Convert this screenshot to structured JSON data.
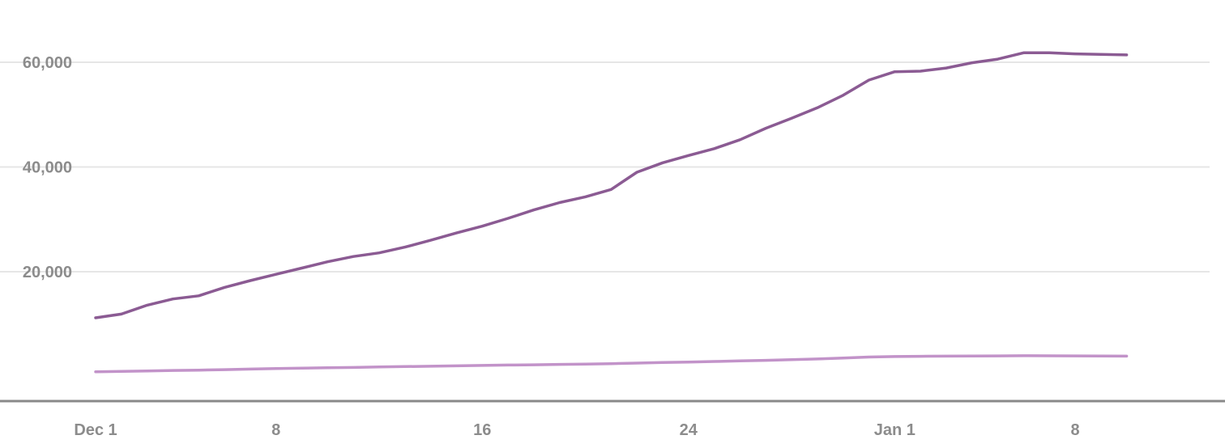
{
  "chart_data": {
    "type": "line",
    "title": "",
    "xlabel": "",
    "ylabel": "",
    "x_ticks": [
      {
        "date": "2020-12-01",
        "label": "Dec 1"
      },
      {
        "date": "2020-12-08",
        "label": "8"
      },
      {
        "date": "2020-12-16",
        "label": "16"
      },
      {
        "date": "2020-12-24",
        "label": "24"
      },
      {
        "date": "2021-01-01",
        "label": "Jan 1"
      },
      {
        "date": "2021-01-08",
        "label": "8"
      }
    ],
    "y_ticks": [
      {
        "value": 20000,
        "label": "20,000"
      },
      {
        "value": 40000,
        "label": "40,000"
      },
      {
        "value": 60000,
        "label": "60,000"
      }
    ],
    "xlim": [
      "2020-11-30",
      "2021-01-13"
    ],
    "ylim": [
      0,
      67000
    ],
    "grid": true,
    "x": [
      "2020-12-01",
      "2020-12-02",
      "2020-12-03",
      "2020-12-04",
      "2020-12-05",
      "2020-12-06",
      "2020-12-07",
      "2020-12-08",
      "2020-12-09",
      "2020-12-10",
      "2020-12-11",
      "2020-12-12",
      "2020-12-13",
      "2020-12-14",
      "2020-12-15",
      "2020-12-16",
      "2020-12-17",
      "2020-12-18",
      "2020-12-19",
      "2020-12-20",
      "2020-12-21",
      "2020-12-22",
      "2020-12-23",
      "2020-12-24",
      "2020-12-25",
      "2020-12-26",
      "2020-12-27",
      "2020-12-28",
      "2020-12-29",
      "2020-12-30",
      "2020-12-31",
      "2021-01-01",
      "2021-01-02",
      "2021-01-03",
      "2021-01-04",
      "2021-01-05",
      "2021-01-06",
      "2021-01-07",
      "2021-01-08",
      "2021-01-09",
      "2021-01-10"
    ],
    "series": [
      {
        "color": "#8b5b93",
        "values": [
          11200,
          11900,
          13600,
          14800,
          15400,
          17000,
          18300,
          19500,
          20700,
          21900,
          22900,
          23600,
          24700,
          26000,
          27400,
          28700,
          30200,
          31800,
          33200,
          34300,
          35700,
          39000,
          40800,
          42200,
          43500,
          45200,
          47400,
          49300,
          51300,
          53700,
          56600,
          58200,
          58300,
          58900,
          59900,
          60600,
          61800,
          61800,
          61600,
          61500,
          61400
        ]
      },
      {
        "color": "#c293c9",
        "values": [
          900,
          950,
          1050,
          1150,
          1200,
          1300,
          1400,
          1500,
          1580,
          1650,
          1720,
          1800,
          1880,
          1950,
          2020,
          2100,
          2170,
          2230,
          2300,
          2370,
          2440,
          2550,
          2650,
          2750,
          2850,
          2960,
          3080,
          3200,
          3340,
          3500,
          3700,
          3800,
          3850,
          3880,
          3900,
          3920,
          3950,
          3940,
          3920,
          3900,
          3880
        ]
      }
    ]
  }
}
